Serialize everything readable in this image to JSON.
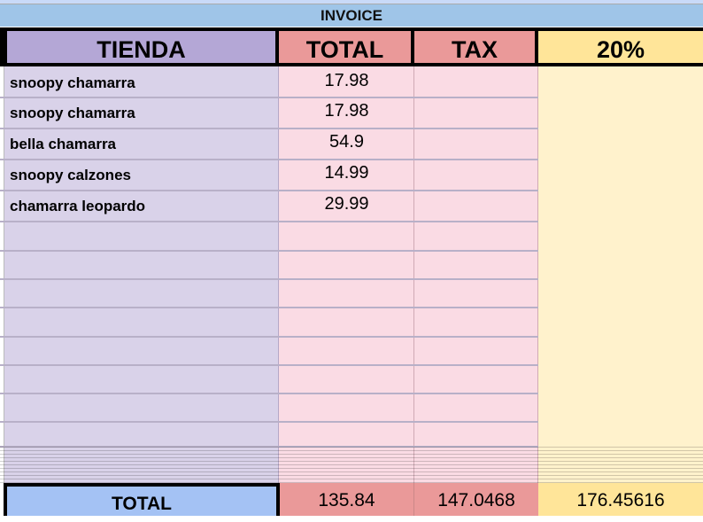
{
  "title": "INVOICE",
  "headers": {
    "store": "TIENDA",
    "total": "TOTAL",
    "tax": "TAX",
    "pct": "20%"
  },
  "rows": [
    {
      "store": "snoopy chamarra",
      "total": "17.98"
    },
    {
      "store": "snoopy chamarra",
      "total": "17.98"
    },
    {
      "store": "bella chamarra",
      "total": "54.9"
    },
    {
      "store": "snoopy calzones",
      "total": "14.99"
    },
    {
      "store": "chamarra leopardo",
      "total": "29.99"
    }
  ],
  "footer": {
    "label": "TOTAL",
    "total": "135.84",
    "tax": "147.0468",
    "pct": "176.45616"
  },
  "colors": {
    "store_header": "#b4a7d6",
    "store_body": "#d9d2e9",
    "total_header": "#ea9999",
    "total_body": "#fadbe4",
    "pct_header": "#ffe599",
    "pct_body": "#fff2cc",
    "title_bg": "#9fc5e8",
    "footer_label_bg": "#a4c2f4"
  }
}
